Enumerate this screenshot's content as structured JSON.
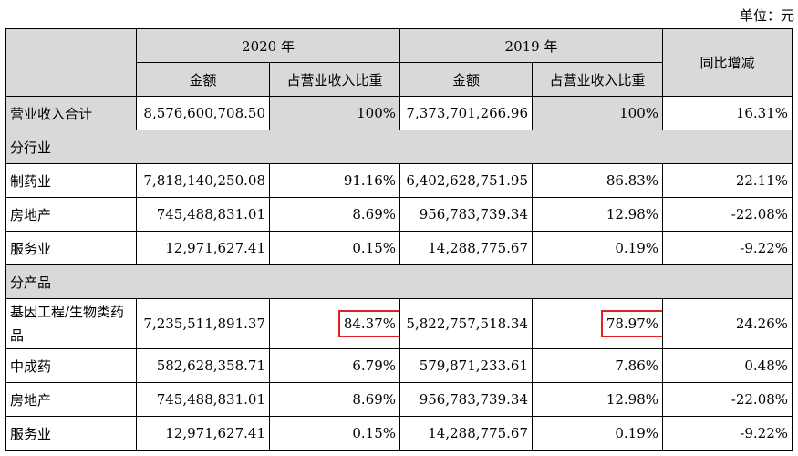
{
  "unit": "单位：元",
  "header": {
    "year1": "2020 年",
    "year2": "2019 年",
    "yoy": "同比增减",
    "amount": "金额",
    "ratio": "占营业收入比重"
  },
  "total": {
    "label": "营业收入合计",
    "amt2020": "8,576,600,708.50",
    "ratio2020": "100%",
    "amt2019": "7,373,701,266.96",
    "ratio2019": "100%",
    "yoy": "16.31%"
  },
  "section1": "分行业",
  "industry": [
    {
      "label": "制药业",
      "amt2020": "7,818,140,250.08",
      "ratio2020": "91.16%",
      "amt2019": "6,402,628,751.95",
      "ratio2019": "86.83%",
      "yoy": "22.11%"
    },
    {
      "label": "房地产",
      "amt2020": "745,488,831.01",
      "ratio2020": "8.69%",
      "amt2019": "956,783,739.34",
      "ratio2019": "12.98%",
      "yoy": "-22.08%"
    },
    {
      "label": "服务业",
      "amt2020": "12,971,627.41",
      "ratio2020": "0.15%",
      "amt2019": "14,288,775.67",
      "ratio2019": "0.19%",
      "yoy": "-9.22%"
    }
  ],
  "section2": "分产品",
  "product": [
    {
      "label": "基因工程/生物类药品",
      "amt2020": "7,235,511,891.37",
      "ratio2020": "84.37%",
      "amt2019": "5,822,757,518.34",
      "ratio2019": "78.97%",
      "yoy": "24.26%"
    },
    {
      "label": "中成药",
      "amt2020": "582,628,358.71",
      "ratio2020": "6.79%",
      "amt2019": "579,871,233.61",
      "ratio2019": "7.86%",
      "yoy": "0.48%"
    },
    {
      "label": "房地产",
      "amt2020": "745,488,831.01",
      "ratio2020": "8.69%",
      "amt2019": "956,783,739.34",
      "ratio2019": "12.98%",
      "yoy": "-22.08%"
    },
    {
      "label": "服务业",
      "amt2020": "12,971,627.41",
      "ratio2020": "0.15%",
      "amt2019": "14,288,775.67",
      "ratio2019": "0.19%",
      "yoy": "-9.22%"
    }
  ],
  "colors": {
    "header_bg": "#d9d9d9",
    "highlight": "#e0202a"
  }
}
